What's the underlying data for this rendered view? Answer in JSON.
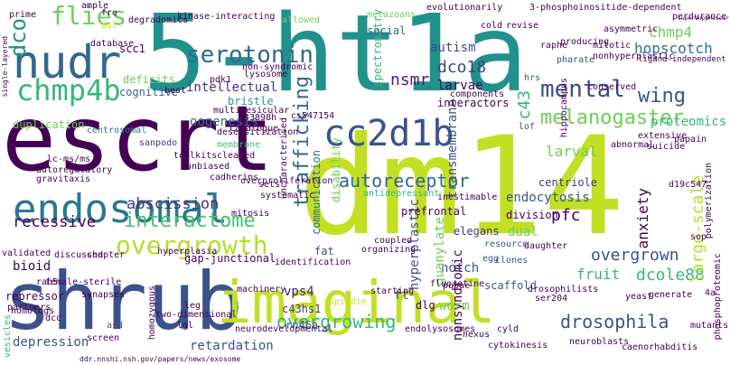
{
  "background": "#ffffff",
  "palette": {
    "deep_purple": "#440154",
    "indigo": "#3b528b",
    "blue": "#31688e",
    "teal": "#21918c",
    "sea_green": "#35b779",
    "green": "#6ece58",
    "lime": "#b5de2b",
    "yellow": "#d2e21b"
  },
  "words": [
    {
      "text": "5-ht1a",
      "color": "#21918c"
    },
    {
      "text": "escrt",
      "color": "#440154"
    },
    {
      "text": "dm14",
      "color": "#c2df23"
    },
    {
      "text": "shrub",
      "color": "#3b528b"
    },
    {
      "text": "imaginal",
      "color": "#c2df23"
    },
    {
      "text": "nudr",
      "color": "#31688e"
    },
    {
      "text": "endosomal",
      "color": "#2a788e"
    },
    {
      "text": "cc2d1b",
      "color": "#3b528b"
    },
    {
      "text": "chmp4b",
      "color": "#35b779"
    },
    {
      "text": "overgrowth",
      "color": "#b5de2b"
    },
    {
      "text": "serotonin",
      "color": "#31688e"
    },
    {
      "text": "mental",
      "color": "#3e4a89"
    },
    {
      "text": "melanogaster",
      "color": "#6ece58"
    },
    {
      "text": "interactome",
      "color": "#44bf70"
    },
    {
      "text": "autoreceptor",
      "color": "#31688e"
    },
    {
      "text": "overgrowing",
      "color": "#35b779"
    },
    {
      "text": "drosophila",
      "color": "#3b528b"
    },
    {
      "text": "abscission",
      "color": "#46327e"
    },
    {
      "text": "recessive",
      "color": "#440154"
    },
    {
      "text": "trafficking",
      "color": "#31688e"
    },
    {
      "text": "flies",
      "color": "#6ece58"
    },
    {
      "text": "dco18",
      "color": "#414487"
    },
    {
      "text": "larvae",
      "color": "#440154"
    },
    {
      "text": "wing",
      "color": "#3b528b"
    },
    {
      "text": "hopscotch",
      "color": "#2c728e"
    },
    {
      "text": "chmp4",
      "color": "#6ece58"
    },
    {
      "text": "autism",
      "color": "#3e4a89"
    },
    {
      "text": "nsmr",
      "color": "#481f70"
    },
    {
      "text": "larval",
      "color": "#6ece58"
    },
    {
      "text": "overgrown",
      "color": "#3b528b"
    },
    {
      "text": "dcole88",
      "color": "#35b779"
    },
    {
      "text": "pfc",
      "color": "#440154"
    },
    {
      "text": "fruit",
      "color": "#35b779"
    },
    {
      "text": "vps4",
      "color": "#481f70"
    },
    {
      "text": "c43hs1",
      "color": "#46327e"
    },
    {
      "text": "rn46a",
      "color": "#3b528b"
    },
    {
      "text": "depression",
      "color": "#3b528b"
    },
    {
      "text": "retardation",
      "color": "#3b528b"
    },
    {
      "text": "intellectual",
      "color": "#46327e"
    },
    {
      "text": "oogenesis",
      "color": "#2c728e"
    },
    {
      "text": "bristle",
      "color": "#1f9e89"
    },
    {
      "text": "multivesicular",
      "color": "#440154"
    },
    {
      "text": "cognitive",
      "color": "#31688e"
    },
    {
      "text": "scc1",
      "color": "#440154"
    },
    {
      "text": "dco",
      "color": "#21918c"
    },
    {
      "text": "centrosomal",
      "color": "#2a788e"
    },
    {
      "text": "membrane",
      "color": "#44bf70"
    },
    {
      "text": "proteomics",
      "color": "#35b779"
    },
    {
      "text": "c43",
      "color": "#35b779"
    },
    {
      "text": "large-scale",
      "color": "#b5de2b"
    },
    {
      "text": "anxiety",
      "color": "#440154"
    },
    {
      "text": "centriole",
      "color": "#46327e"
    },
    {
      "text": "endocytosis",
      "color": "#3b528b"
    },
    {
      "text": "division",
      "color": "#440154"
    },
    {
      "text": "elegans",
      "color": "#46327e"
    },
    {
      "text": "notch",
      "color": "#3b528b"
    },
    {
      "text": "guanylate",
      "color": "#6ece58"
    },
    {
      "text": "hyperplastic",
      "color": "#3b528b"
    },
    {
      "text": "transmembrane",
      "color": "#3b528b"
    },
    {
      "text": "communication",
      "color": "#2c728e"
    },
    {
      "text": "disability",
      "color": "#6ece58"
    },
    {
      "text": "spectrometry",
      "color": "#35b779"
    },
    {
      "text": "nonsyndromic",
      "color": "#440154"
    },
    {
      "text": "scaffold",
      "color": "#3b528b"
    },
    {
      "text": "worm",
      "color": "#6ece58"
    },
    {
      "text": "dlg",
      "color": "#440154"
    },
    {
      "text": "ft",
      "color": "#3b528b"
    },
    {
      "text": "neurodevelopmental",
      "color": "#440154"
    },
    {
      "text": "endolysosomes",
      "color": "#440154"
    },
    {
      "text": "cytokinesis",
      "color": "#440154"
    },
    {
      "text": "neuroblasts",
      "color": "#440154"
    },
    {
      "text": "caenorhabditis",
      "color": "#440154"
    },
    {
      "text": "sanpodo",
      "color": "#46327e"
    },
    {
      "text": "toolkits",
      "color": "#440154"
    },
    {
      "text": "cleaved",
      "color": "#440154"
    },
    {
      "text": "antidepressant",
      "color": "#35b779"
    },
    {
      "text": "prefrontal",
      "color": "#440154"
    },
    {
      "text": "gap-junctional",
      "color": "#440154"
    },
    {
      "text": "bioid",
      "color": "#440154"
    },
    {
      "text": "female-sterile",
      "color": "#440154"
    },
    {
      "text": "repressor",
      "color": "#440154"
    },
    {
      "text": "rab5",
      "color": "#440154"
    },
    {
      "text": "synapses",
      "color": "#440154"
    },
    {
      "text": "partners",
      "color": "#440154"
    },
    {
      "text": "homozygous",
      "color": "#440154"
    },
    {
      "text": "lgl",
      "color": "#440154"
    },
    {
      "text": "leg",
      "color": "#440154"
    },
    {
      "text": "asd",
      "color": "#3b528b"
    },
    {
      "text": "fat",
      "color": "#3b528b"
    },
    {
      "text": "pupae",
      "color": "#440154"
    },
    {
      "text": "egg",
      "color": "#3b528b"
    },
    {
      "text": "resource",
      "color": "#3b528b"
    },
    {
      "text": "clones",
      "color": "#3b528b"
    },
    {
      "text": "fluoxetine",
      "color": "#440154"
    },
    {
      "text": "dual",
      "color": "#6ece58"
    },
    {
      "text": "daughter",
      "color": "#440154"
    },
    {
      "text": "sop",
      "color": "#440154"
    },
    {
      "text": "polymerization",
      "color": "#440154"
    },
    {
      "text": "phosphoproteomic",
      "color": "#440154"
    },
    {
      "text": "duplication",
      "color": "#6ece58"
    },
    {
      "text": "deficits",
      "color": "#6ece58"
    },
    {
      "text": "pdk1",
      "color": "#440154"
    },
    {
      "text": "metazoans",
      "color": "#6ece58"
    },
    {
      "text": "social",
      "color": "#31688e"
    },
    {
      "text": "interactors",
      "color": "#440154"
    },
    {
      "text": "raphe",
      "color": "#440154"
    },
    {
      "text": "pharate",
      "color": "#3b528b"
    },
    {
      "text": "perdurance",
      "color": "#440154"
    },
    {
      "text": "hrs",
      "color": "#3b528b"
    },
    {
      "text": "lof",
      "color": "#3b528b"
    },
    {
      "text": "fre",
      "color": "#440154"
    },
    {
      "text": "dsl",
      "color": "#d2e21b"
    },
    {
      "text": "prime",
      "color": "#440154"
    },
    {
      "text": "uncharacterised",
      "color": "#440154"
    },
    {
      "text": "two-dimensional",
      "color": "#440154"
    },
    {
      "text": "vesicles",
      "color": "#35b779"
    },
    {
      "text": "spindle",
      "color": "#d2e21b"
    },
    {
      "text": "ligand-independent",
      "color": "#440154"
    },
    {
      "text": "components",
      "color": "#440154"
    },
    {
      "text": "kinase-interacting",
      "color": "#440154"
    },
    {
      "text": "3-phosphoinositide-dependent",
      "color": "#440154"
    },
    {
      "text": "evolutionarily",
      "color": "#440154"
    },
    {
      "text": "degradomics",
      "color": "#440154"
    },
    {
      "text": "allowed",
      "color": "#6ece58"
    },
    {
      "text": "ample",
      "color": "#440154"
    },
    {
      "text": "cold",
      "color": "#440154"
    },
    {
      "text": "revise",
      "color": "#440154"
    },
    {
      "text": "mitotic",
      "color": "#440154"
    },
    {
      "text": "nonhyperplastic",
      "color": "#440154"
    },
    {
      "text": "asymmetric",
      "color": "#440154"
    },
    {
      "text": "supersuppressor",
      "color": "#440154"
    },
    {
      "text": "producing",
      "color": "#440154"
    },
    {
      "text": "conserved",
      "color": "#440154"
    },
    {
      "text": "hippocampus",
      "color": "#440154"
    },
    {
      "text": "catalogue",
      "color": "#440154"
    },
    {
      "text": "non-syndromic",
      "color": "#440154"
    },
    {
      "text": "lysosome",
      "color": "#440154"
    },
    {
      "text": "desensitization",
      "color": "#440154"
    },
    {
      "text": "c43898h",
      "color": "#440154"
    },
    {
      "text": "cs547154",
      "color": "#440154"
    },
    {
      "text": "abnormal",
      "color": "#440154"
    },
    {
      "text": "extensive",
      "color": "#440154"
    },
    {
      "text": "overproliferation",
      "color": "#440154"
    },
    {
      "text": "inestimable",
      "color": "#440154"
    },
    {
      "text": "mitosis",
      "color": "#440154"
    },
    {
      "text": "unbiased",
      "color": "#440154"
    },
    {
      "text": "cadherins",
      "color": "#440154"
    },
    {
      "text": "hyperplasia",
      "color": "#440154"
    },
    {
      "text": "validated",
      "color": "#440154"
    },
    {
      "text": "discussed",
      "color": "#440154"
    },
    {
      "text": "chapter",
      "color": "#440154"
    },
    {
      "text": "coupled",
      "color": "#440154"
    },
    {
      "text": "organizing",
      "color": "#440154"
    },
    {
      "text": "machinery",
      "color": "#440154"
    },
    {
      "text": "starting",
      "color": "#440154"
    },
    {
      "text": "nexus",
      "color": "#440154"
    },
    {
      "text": "cyld",
      "color": "#440154"
    },
    {
      "text": "drosophilists",
      "color": "#440154"
    },
    {
      "text": "screen",
      "color": "#440154"
    },
    {
      "text": "ser204",
      "color": "#440154"
    },
    {
      "text": "yeast",
      "color": "#440154"
    },
    {
      "text": "generate",
      "color": "#440154"
    },
    {
      "text": "ddr.nnshi.nsh.gov/papers/news/exosome",
      "color": "#440154"
    },
    {
      "text": "mutants",
      "color": "#440154"
    },
    {
      "text": "4a",
      "color": "#440154"
    },
    {
      "text": "homologs",
      "color": "#440154"
    },
    {
      "text": "dcc",
      "color": "#440154"
    },
    {
      "text": "single-layered",
      "color": "#440154"
    },
    {
      "text": "lc-ms/ms",
      "color": "#440154"
    },
    {
      "text": "autoregulatory",
      "color": "#440154"
    },
    {
      "text": "gravitaxis",
      "color": "#440154"
    },
    {
      "text": "database",
      "color": "#440154"
    },
    {
      "text": "suicide",
      "color": "#440154"
    },
    {
      "text": "best",
      "color": "#440154"
    },
    {
      "text": "sets",
      "color": "#440154"
    },
    {
      "text": "systematic",
      "color": "#440154"
    },
    {
      "text": "d19c547",
      "color": "#440154"
    },
    {
      "text": "papain",
      "color": "#440154"
    },
    {
      "text": "identification",
      "color": "#440154"
    }
  ]
}
